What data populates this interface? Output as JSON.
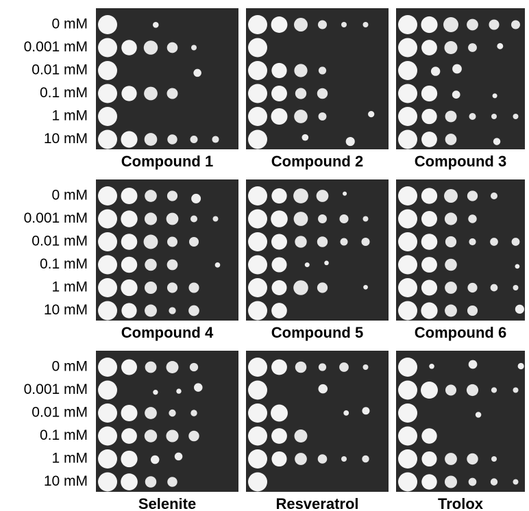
{
  "figure_rows": [
    {
      "concentrations": [
        "0 mM",
        "0.001 mM",
        "0.01 mM",
        "0.1 mM",
        "1 mM",
        "10 mM"
      ],
      "panels": [
        "Compound 1",
        "Compound 2",
        "Compound 3"
      ]
    },
    {
      "concentrations": [
        "0 mM",
        "0.001 mM",
        "0.01 mM",
        "0.1 mM",
        "1 mM",
        "10 mM"
      ],
      "panels": [
        "Compound 4",
        "Compound 5",
        "Compound 6"
      ]
    },
    {
      "concentrations": [
        "0 mM",
        "0.001 mM",
        "0.01 mM",
        "0.1 mM",
        "1 mM",
        "10 mM"
      ],
      "panels": [
        "Selenite",
        "Resveratrol",
        "Trolox"
      ]
    }
  ]
}
